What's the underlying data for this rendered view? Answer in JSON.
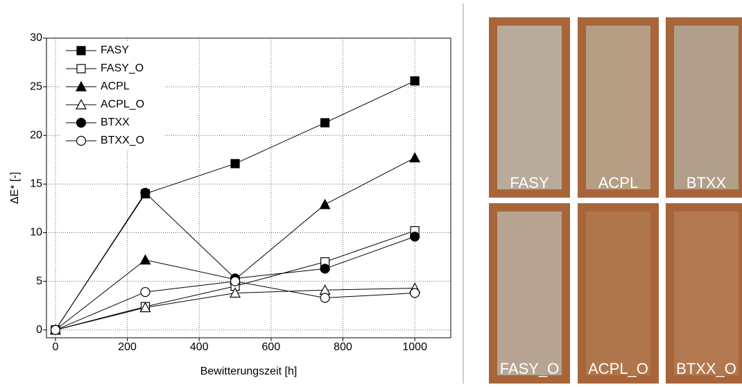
{
  "chart_data": {
    "type": "line",
    "x_label": "Bewitterungszeit [h]",
    "y_label": "ΔE* [-]",
    "x": [
      0,
      250,
      500,
      750,
      1000
    ],
    "series": [
      {
        "name": "FASY",
        "color": "#000000",
        "marker": "square",
        "filled": true,
        "values": [
          0,
          14.0,
          17.1,
          21.3,
          25.6
        ]
      },
      {
        "name": "FASY_O",
        "color": "#000000",
        "marker": "square",
        "filled": false,
        "values": [
          0,
          2.4,
          4.5,
          7.0,
          10.2
        ]
      },
      {
        "name": "ACPL",
        "color": "#000000",
        "marker": "triangle",
        "filled": true,
        "values": [
          0,
          7.2,
          5.2,
          12.9,
          17.7
        ]
      },
      {
        "name": "ACPL_O",
        "color": "#000000",
        "marker": "triangle",
        "filled": false,
        "values": [
          0,
          2.3,
          3.8,
          4.1,
          4.3
        ]
      },
      {
        "name": "BTXX",
        "color": "#000000",
        "marker": "circle",
        "filled": true,
        "values": [
          0,
          14.1,
          5.3,
          6.3,
          9.6
        ]
      },
      {
        "name": "BTXX_O",
        "color": "#000000",
        "marker": "circle",
        "filled": false,
        "values": [
          0,
          3.9,
          5.0,
          3.3,
          3.8
        ]
      }
    ],
    "xlim": [
      -25,
      1100
    ],
    "xticks": [
      0,
      200,
      400,
      600,
      800,
      1000
    ],
    "ylim": [
      -0.8,
      30
    ],
    "yticks": [
      0,
      5,
      10,
      15,
      20,
      25,
      30
    ],
    "grid": true,
    "legend": "upper left"
  },
  "photos": {
    "labels": [
      "FASY",
      "ACPL",
      "BTXX",
      "FASY_O",
      "ACPL_O",
      "BTXX_O"
    ]
  }
}
